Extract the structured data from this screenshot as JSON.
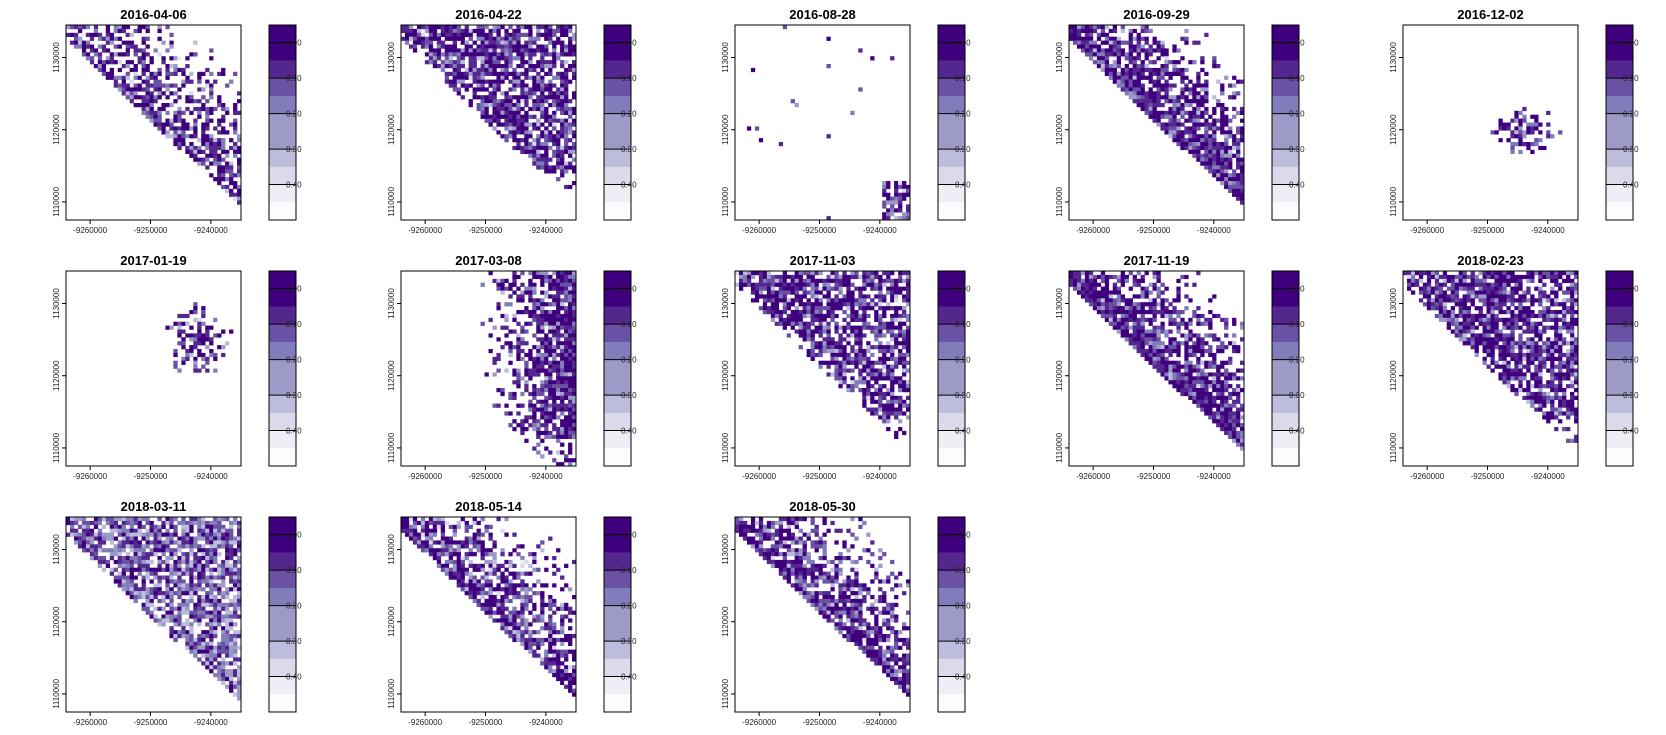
{
  "chart_data": {
    "type": "heatmap",
    "colors": [
      "#3f007d",
      "#54278f",
      "#6a51a3",
      "#807dba",
      "#9e9ac8",
      "#bcbddc",
      "#dadaeb",
      "#efedf5",
      "#fcfbfd"
    ],
    "legend": {
      "tick_labels": [
        "0.00",
        "0.10",
        "0.20",
        "0.30",
        "0.40"
      ],
      "tick_values": [
        0.0,
        0.1,
        0.2,
        0.3,
        0.4
      ],
      "min": -0.05,
      "max": 0.5,
      "step": 0.05
    },
    "x_axis": {
      "tick_labels": [
        "-9260000",
        "-9250000",
        "-9240000"
      ],
      "tick_values": [
        -9260000,
        -9250000,
        -9240000
      ],
      "range": [
        -9264000,
        -9235000
      ]
    },
    "y_axis": {
      "tick_labels": [
        "1110000",
        "1120000",
        "1130000"
      ],
      "tick_values": [
        1110000,
        1120000,
        1130000
      ],
      "range": [
        1107500,
        1134500
      ]
    },
    "panels": [
      {
        "title": "2016-04-06",
        "coverage": 0.35,
        "density": 0.55,
        "pattern": "coast"
      },
      {
        "title": "2016-04-22",
        "coverage": 0.55,
        "density": 0.75,
        "pattern": "coast-upper"
      },
      {
        "title": "2016-08-28",
        "coverage": 0.03,
        "density": 0.6,
        "pattern": "sparse"
      },
      {
        "title": "2016-09-29",
        "coverage": 0.4,
        "density": 0.8,
        "pattern": "coast"
      },
      {
        "title": "2016-12-02",
        "coverage": 0.12,
        "density": 0.8,
        "pattern": "center"
      },
      {
        "title": "2017-01-19",
        "coverage": 0.12,
        "density": 0.8,
        "pattern": "center-upper"
      },
      {
        "title": "2017-03-08",
        "coverage": 0.3,
        "density": 0.85,
        "pattern": "right"
      },
      {
        "title": "2017-11-03",
        "coverage": 0.55,
        "density": 0.7,
        "pattern": "coast-upper"
      },
      {
        "title": "2017-11-19",
        "coverage": 0.55,
        "density": 0.85,
        "pattern": "coast"
      },
      {
        "title": "2018-02-23",
        "coverage": 0.45,
        "density": 0.75,
        "pattern": "coast-upper"
      },
      {
        "title": "2018-03-11",
        "coverage": 0.75,
        "density": 0.5,
        "pattern": "full"
      },
      {
        "title": "2018-05-14",
        "coverage": 0.3,
        "density": 0.6,
        "pattern": "coast"
      },
      {
        "title": "2018-05-30",
        "coverage": 0.45,
        "density": 0.7,
        "pattern": "coast"
      }
    ]
  }
}
